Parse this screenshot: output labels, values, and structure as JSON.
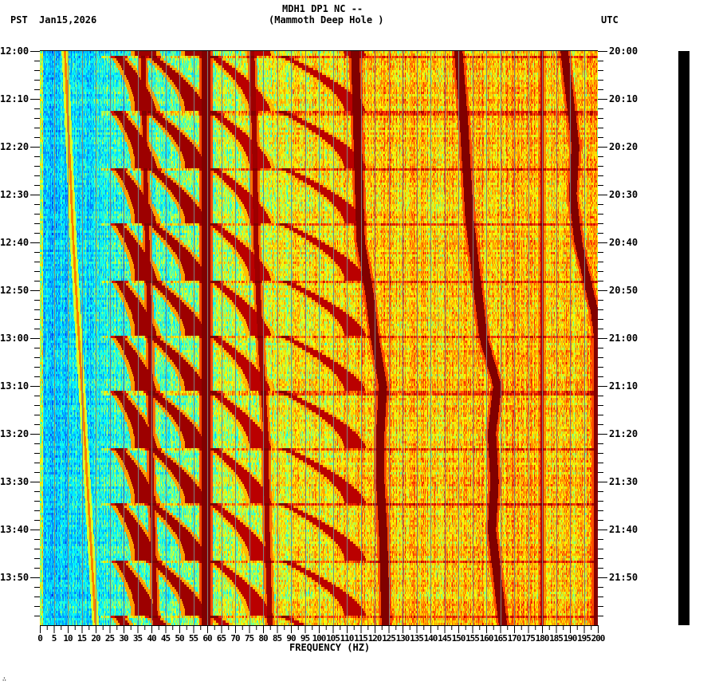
{
  "header": {
    "left_tz": "PST",
    "date": "Jan15,2026",
    "title_line1": "MDH1 DP1 NC --",
    "title_line2": "(Mammoth Deep Hole )",
    "right_tz": "UTC"
  },
  "footer": {
    "mark": "∴"
  },
  "chart_data": {
    "type": "heatmap",
    "title": "MDH1 DP1 NC -- (Mammoth Deep Hole )",
    "subtitle": "Jan15,2026",
    "xlabel": "FREQUENCY (HZ)",
    "ylabel_left": "PST",
    "ylabel_right": "UTC",
    "xlim": [
      0,
      200
    ],
    "x_ticks": [
      "0",
      "5",
      "10",
      "15",
      "20",
      "25",
      "30",
      "35",
      "40",
      "45",
      "50",
      "55",
      "60",
      "65",
      "70",
      "75",
      "80",
      "85",
      "90",
      "95",
      "100",
      "105",
      "110",
      "115",
      "120",
      "125",
      "130",
      "135",
      "140",
      "145",
      "150",
      "155",
      "160",
      "165",
      "170",
      "175",
      "180",
      "185",
      "190",
      "195",
      "200"
    ],
    "y_ticks_left": [
      "12:00",
      "12:10",
      "12:20",
      "12:30",
      "12:40",
      "12:50",
      "13:00",
      "13:10",
      "13:20",
      "13:30",
      "13:40",
      "13:50"
    ],
    "y_ticks_right": [
      "20:00",
      "20:10",
      "20:20",
      "20:30",
      "20:40",
      "20:50",
      "21:00",
      "21:10",
      "21:20",
      "21:30",
      "21:40",
      "21:50"
    ],
    "time_range_minutes": 120,
    "grid": {
      "x_every_hz": 5,
      "color": "#808080"
    },
    "colormap": [
      "#0000c8",
      "#0064ff",
      "#00b4ff",
      "#00ffff",
      "#80ff80",
      "#ffff00",
      "#ffa000",
      "#ff3000",
      "#c00000",
      "#800000"
    ],
    "background_trend": {
      "low_freq_level": 0.22,
      "high_freq_level": 0.62
    },
    "features": [
      {
        "name": "steady-line-60hz",
        "freq": 59.5,
        "width_hz": 1.6,
        "level": 1.0
      },
      {
        "name": "steady-line-180hz",
        "freq": 180,
        "width_hz": 0.5,
        "level": 0.9
      },
      {
        "name": "wandering-line-40hz",
        "points": [
          [
            0,
            37
          ],
          [
            30,
            38
          ],
          [
            60,
            39.5
          ],
          [
            90,
            40
          ],
          [
            120,
            41.5
          ]
        ],
        "width_hz": 0.8,
        "level": 0.95
      },
      {
        "name": "wandering-line-75hz",
        "points": [
          [
            0,
            76
          ],
          [
            20,
            77
          ],
          [
            40,
            77.5
          ],
          [
            60,
            79
          ],
          [
            80,
            81
          ],
          [
            100,
            81.5
          ],
          [
            120,
            82.5
          ]
        ],
        "width_hz": 0.9,
        "level": 0.95
      },
      {
        "name": "wandering-line-112hz",
        "points": [
          [
            0,
            113
          ],
          [
            20,
            114
          ],
          [
            40,
            115
          ],
          [
            50,
            118
          ],
          [
            60,
            120
          ],
          [
            70,
            123
          ],
          [
            80,
            122
          ],
          [
            90,
            122
          ],
          [
            100,
            123
          ],
          [
            120,
            124
          ]
        ],
        "width_hz": 1.5,
        "level": 1.0
      },
      {
        "name": "wandering-line-150hz",
        "points": [
          [
            0,
            150
          ],
          [
            15,
            152
          ],
          [
            35,
            154
          ],
          [
            50,
            157
          ],
          [
            60,
            159
          ],
          [
            70,
            164
          ],
          [
            80,
            162
          ],
          [
            90,
            163
          ],
          [
            100,
            162
          ],
          [
            120,
            166
          ]
        ],
        "width_hz": 1.5,
        "level": 1.0
      },
      {
        "name": "wandering-line-188hz",
        "points": [
          [
            0,
            188
          ],
          [
            10,
            190
          ],
          [
            20,
            192
          ],
          [
            30,
            191
          ],
          [
            40,
            193
          ],
          [
            50,
            197
          ],
          [
            55,
            199
          ],
          [
            60,
            200
          ]
        ],
        "width_hz": 1.4,
        "level": 1.0
      },
      {
        "name": "drifting-line-10hz",
        "points": [
          [
            0,
            9
          ],
          [
            40,
            12
          ],
          [
            80,
            16
          ],
          [
            120,
            20
          ]
        ],
        "width_hz": 0.4,
        "level": 0.7
      },
      {
        "name": "chirp-sweeps",
        "period_min": 11.7,
        "start_min": 1,
        "harmonics": [
          {
            "f0": 38,
            "f1": 28,
            "level": 0.95
          },
          {
            "f0": 56,
            "f1": 40,
            "level": 0.95
          },
          {
            "f0": 79,
            "f1": 62,
            "level": 0.9
          },
          {
            "f0": 113,
            "f1": 87,
            "level": 0.9
          }
        ]
      }
    ]
  }
}
